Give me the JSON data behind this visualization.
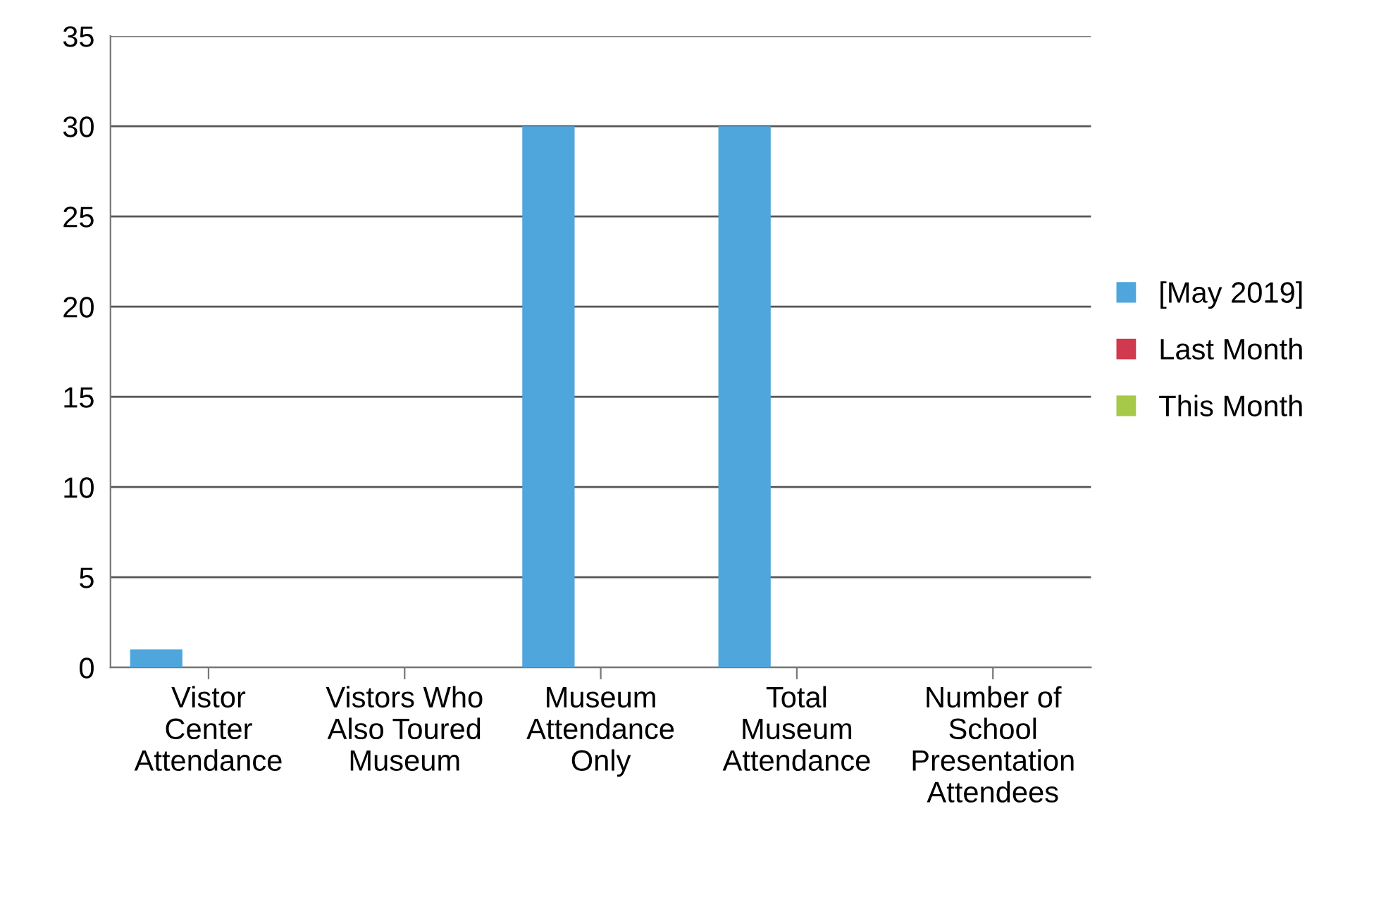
{
  "chart_data": {
    "type": "bar",
    "categories": [
      "Vistor\nCenter\nAttendance",
      "Vistors Who\nAlso Toured\nMuseum",
      "Museum\nAttendance\nOnly",
      "Total\nMuseum\nAttendance",
      "Number of\nSchool\nPresentation\nAttendees"
    ],
    "series": [
      {
        "name": "[May 2019]",
        "color": "#4ea6dc",
        "values": [
          1,
          0,
          30,
          30,
          0
        ]
      },
      {
        "name": "Last Month",
        "color": "#d0394e",
        "values": [
          null,
          null,
          null,
          null,
          null
        ]
      },
      {
        "name": "This Month",
        "color": "#a6c94a",
        "values": [
          null,
          null,
          null,
          null,
          null
        ]
      }
    ],
    "ylim": [
      0,
      35
    ],
    "yticks": [
      0,
      5,
      10,
      15,
      20,
      25,
      30,
      35
    ],
    "grid": "y",
    "legend": "right"
  }
}
